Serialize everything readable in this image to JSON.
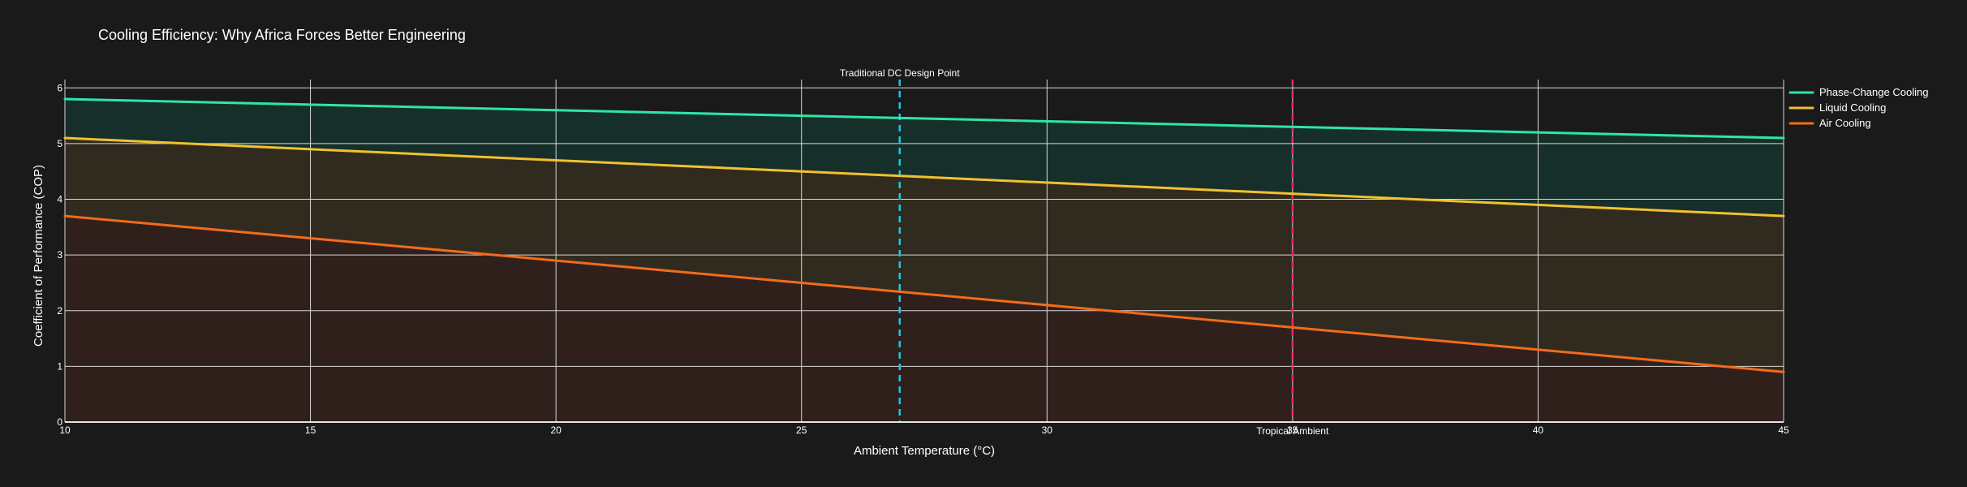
{
  "chart_data": {
    "type": "area",
    "title": "Cooling Efficiency: Why Africa Forces Better Engineering",
    "xlabel": "Ambient Temperature (°C)",
    "ylabel": "Coefficient of Performance (COP)",
    "xlim": [
      10,
      45
    ],
    "ylim": [
      0,
      6.15
    ],
    "x_ticks": [
      10,
      15,
      20,
      25,
      30,
      35,
      40,
      45
    ],
    "x_tick_labels": [
      "10",
      "15",
      "20",
      "25",
      "30",
      "35",
      "40",
      "45"
    ],
    "y_ticks": [
      0,
      1,
      2,
      3,
      4,
      5,
      6
    ],
    "y_tick_labels": [
      "0",
      "1",
      "2",
      "3",
      "4",
      "5",
      "6"
    ],
    "grid": true,
    "legend_position": "top-right",
    "series": [
      {
        "name": "Phase-Change Cooling",
        "color": "#2ee6a6",
        "fill": "rgba(23,48,43,0.95)",
        "x": [
          10,
          45
        ],
        "values": [
          5.8,
          5.1
        ]
      },
      {
        "name": "Liquid Cooling",
        "color": "#f2c12e",
        "fill": "rgba(50,43,29,0.95)",
        "x": [
          10,
          45
        ],
        "values": [
          5.1,
          3.7
        ]
      },
      {
        "name": "Air Cooling",
        "color": "#f36b1c",
        "fill": "rgba(48,32,28,0.95)",
        "x": [
          10,
          45
        ],
        "values": [
          3.7,
          0.9
        ]
      }
    ],
    "reference_lines": [
      {
        "x": 27,
        "label": "Traditional DC Design Point",
        "color": "#22c5e6",
        "label_position": "top"
      },
      {
        "x": 35,
        "label": "Tropical Ambient",
        "color": "#ff1f6a",
        "label_position": "bottom"
      }
    ]
  }
}
